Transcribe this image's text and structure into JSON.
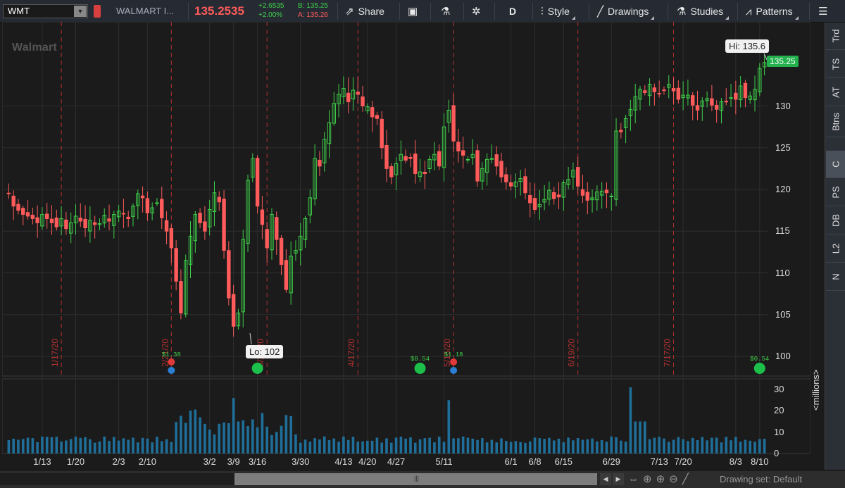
{
  "toolbar": {
    "symbol": "WMT",
    "company": "WALMART I...",
    "price": "135.2535",
    "change": "+2.6535",
    "change_pct": "+2.00%",
    "bid": "B: 135.25",
    "ask": "A: 135.26",
    "share": "Share",
    "period": "D",
    "style": "Style",
    "drawings": "Drawings",
    "studies": "Studies",
    "patterns": "Patterns"
  },
  "right_tabs": [
    "Trd",
    "TS",
    "AT",
    "Btns",
    "C",
    "PS",
    "DB",
    "L2",
    "N"
  ],
  "active_tab": "C",
  "chart": {
    "watermark": "Walmart",
    "hi_label": "Hi: 135.6",
    "lo_label": "Lo: 102",
    "last_price": "135.25",
    "volume_unit": "<millions>",
    "scrollbar_grip": "|||",
    "drawing_set": "Drawing set: Default"
  },
  "colors": {
    "up": "#3fcf4a",
    "down": "#ff5b5b",
    "volume": "#1f6f9a",
    "event_line": "#b33030",
    "grid": "#2e2e2e",
    "background": "#1b1b1b"
  },
  "chart_data": {
    "type": "candlestick",
    "price_ticks": [
      100,
      105,
      110,
      115,
      120,
      125,
      130
    ],
    "volume_ticks": [
      0,
      10,
      20,
      30
    ],
    "x_ticks": [
      "1/13",
      "1/20",
      "2/3",
      "2/10",
      "3/2",
      "3/9",
      "3/16",
      "3/30",
      "4/13",
      "4/20",
      "4/27",
      "5/11",
      "6/1",
      "6/8",
      "6/15",
      "6/29",
      "7/13",
      "7/20",
      "8/3",
      "8/10"
    ],
    "event_dates": [
      "1/17/20",
      "2/21/20",
      "3/20/20",
      "4/17/20",
      "5/15/20",
      "6/19/20",
      "7/17/20"
    ],
    "event_markers": [
      {
        "kind": "earnings",
        "label": "$1.38"
      },
      {
        "kind": "dividend",
        "label": ""
      },
      {
        "kind": "dividend",
        "label": "$0.54"
      },
      {
        "kind": "earnings",
        "label": "$1.18"
      },
      {
        "kind": "dividend",
        "label": "$0.54"
      }
    ],
    "ylim": [
      98,
      138
    ],
    "high": 135.6,
    "low": 102,
    "closes": [
      119.5,
      118.0,
      117.5,
      117.0,
      116.8,
      116.5,
      116.0,
      117.0,
      116.5,
      116.0,
      115.5,
      116.5,
      115.3,
      116.0,
      116.8,
      116.2,
      115.4,
      116.3,
      115.8,
      115.9,
      116.9,
      116.2,
      117.0,
      117.4,
      117.1,
      116.5,
      118.0,
      119.5,
      119.0,
      117.2,
      117.8,
      118.4,
      116.6,
      115.0,
      113.0,
      109.0,
      105.2,
      111.5,
      114.4,
      117.0,
      116.0,
      115.0,
      117.6,
      119.6,
      118.5,
      112.7,
      107.0,
      103.6,
      105.2,
      114.0,
      121.1,
      123.7,
      118.0,
      115.8,
      113.0,
      117.0,
      114.0,
      111.0,
      108.0,
      112.0,
      112.7,
      114.4,
      116.5,
      119.0,
      123.7,
      122.8,
      126.0,
      128.0,
      130.3,
      131.4,
      132.1,
      130.5,
      131.9,
      131.4,
      130.0,
      129.9,
      128.7,
      128.5,
      125.0,
      122.5,
      121.5,
      123.1,
      124.2,
      123.5,
      123.7,
      121.9,
      122.1,
      121.9,
      123.6,
      124.2,
      122.8,
      127.5,
      129.5,
      125.8,
      124.6,
      124.1,
      123.6,
      124.2,
      121.0,
      122.5,
      123.6,
      123.7,
      122.8,
      121.5,
      120.9,
      120.4,
      120.9,
      121.3,
      119.6,
      118.4,
      117.6,
      118.2,
      118.8,
      119.9,
      118.9,
      119.1,
      120.8,
      121.2,
      122.3,
      120.4,
      119.3,
      118.7,
      119.0,
      119.7,
      119.8,
      119.6,
      119.2,
      127.0,
      126.9,
      128.5,
      129.6,
      131.1,
      132.0,
      131.6,
      132.6,
      131.7,
      131.5,
      131.9,
      132.6,
      131.8,
      130.8,
      131.3,
      131.3,
      130.1,
      129.5,
      130.6,
      130.9,
      130.1,
      129.6,
      130.5,
      130.5,
      131.0,
      130.8,
      132.4,
      131.0,
      131.2,
      132.0,
      134.5,
      135.2
    ]
  }
}
